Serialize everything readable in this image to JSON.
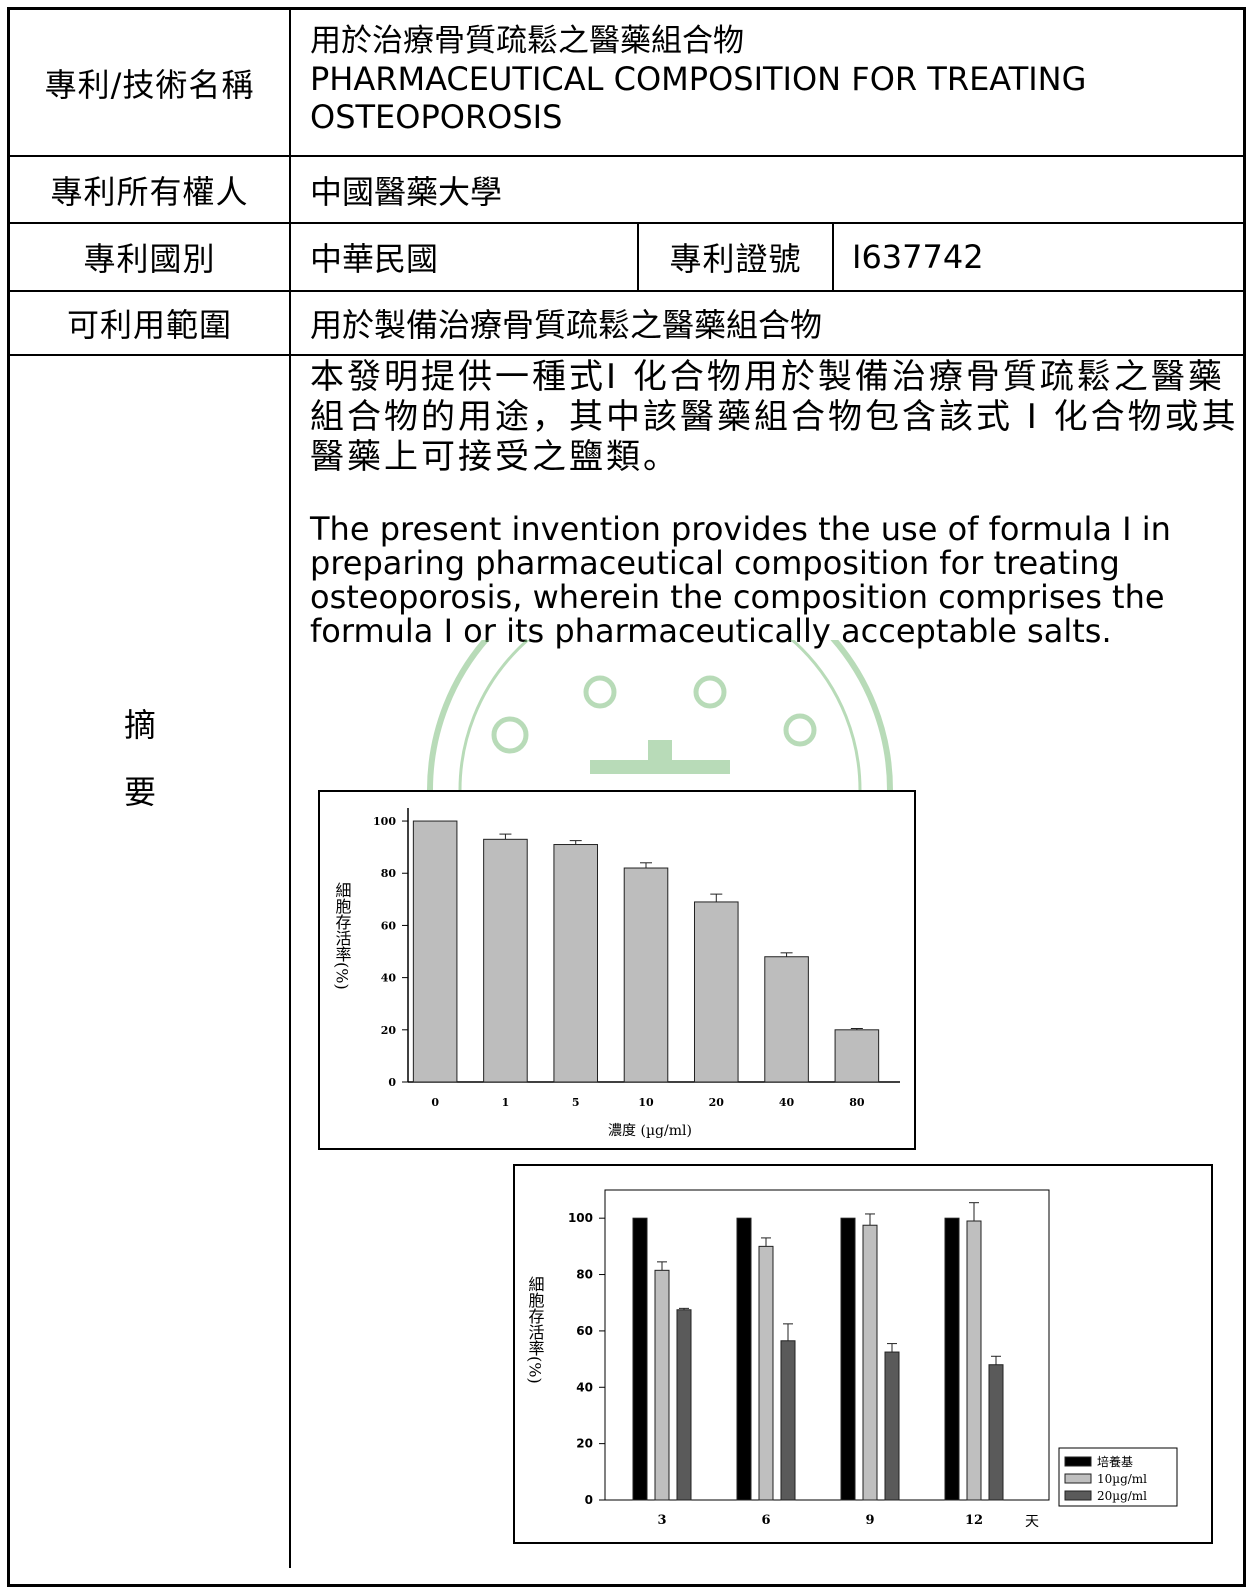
{
  "table": {
    "row_title": {
      "label": "專利/技術名稱",
      "value_zh": "用於治療骨質疏鬆之醫藥組合物",
      "value_en_1": "PHARMACEUTICAL COMPOSITION FOR TREATING",
      "value_en_2": "OSTEOPOROSIS"
    },
    "row_owner": {
      "label": "專利所有權人",
      "value": "中國醫藥大學"
    },
    "row_country": {
      "label": "專利國別",
      "value": "中華民國",
      "cert_label": "專利證號",
      "cert_value": "I637742"
    },
    "row_scope": {
      "label": "可利用範圍",
      "value": "用於製備治療骨質疏鬆之醫藥組合物"
    },
    "row_abstract": {
      "label_1": "摘",
      "label_2": "要",
      "text_zh": "本發明提供一種式I 化合物用於製備治療骨質疏鬆之醫藥組合物的用途，其中該醫藥組合物包含該式 I 化合物或其醫藥上可接受之鹽類。",
      "text_en": "The present invention provides the use of formula I in preparing pharmaceutical composition for treating osteoporosis, wherein the composition comprises the formula I or its pharmaceutically acceptable salts."
    }
  },
  "watermark_color": "#7fbf7f",
  "chart_data": [
    {
      "type": "bar",
      "categories": [
        "0",
        "1",
        "5",
        "10",
        "20",
        "40",
        "80"
      ],
      "values": [
        100,
        93,
        91,
        82,
        69,
        48,
        20
      ],
      "errors": [
        0,
        2,
        1.5,
        2,
        3,
        1.5,
        0.5
      ],
      "yticks": [
        0,
        20,
        40,
        60,
        80,
        100
      ],
      "ylim": [
        0,
        105
      ],
      "ylabel": "細胞存活率(%)",
      "xlabel": "濃度 (µg/ml)",
      "bar_color": "#bdbdbd"
    },
    {
      "type": "bar",
      "categories": [
        "3",
        "6",
        "9",
        "12"
      ],
      "x_unit": "天",
      "series": [
        {
          "name": "培養基",
          "values": [
            100,
            100,
            100,
            100
          ],
          "errors": [
            0,
            0,
            0,
            0
          ],
          "color": "#000000"
        },
        {
          "name": "10µg/ml",
          "values": [
            81.5,
            90,
            97.5,
            99
          ],
          "errors": [
            3,
            3,
            4,
            6.5
          ],
          "color": "#bfbfbf"
        },
        {
          "name": "20µg/ml",
          "values": [
            67.5,
            56.5,
            52.5,
            48
          ],
          "errors": [
            0.5,
            6,
            3,
            3
          ],
          "color": "#5a5a5a"
        }
      ],
      "yticks": [
        0,
        20,
        40,
        60,
        80,
        100
      ],
      "ylim": [
        0,
        110
      ],
      "ylabel": "細胞存活率(%)",
      "legend": "bottom-right"
    }
  ]
}
